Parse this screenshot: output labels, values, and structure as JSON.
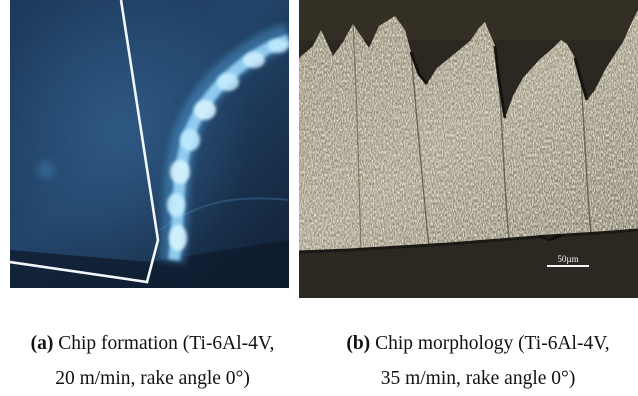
{
  "figure": {
    "panel_a": {
      "caption_tag": "(a)",
      "caption_line1": " Chip formation (Ti-6Al-4V,",
      "caption_line2": "20 m/min, rake angle 0°)"
    },
    "panel_b": {
      "caption_tag": "(b)",
      "caption_line1": " Chip morphology (Ti-6Al-4V,",
      "caption_line2": "35 m/min, rake angle 0°)",
      "scale_bar_label": "50µm"
    }
  }
}
